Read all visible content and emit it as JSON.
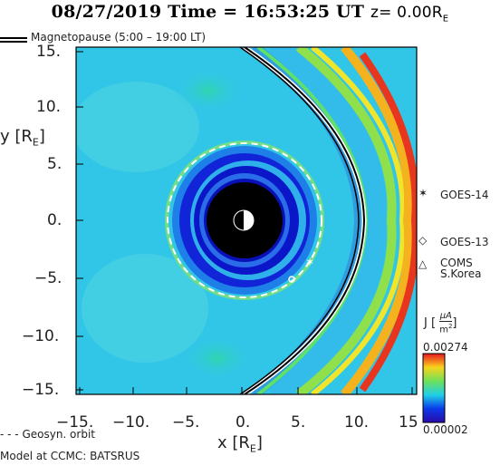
{
  "header": {
    "date": "08/27/2019",
    "time_label": "Time =",
    "time": "16:53:25 UT",
    "z_label": "z= 0.00R",
    "z_sub": "E"
  },
  "legend": {
    "magnetopause": "Magnetopause (5:00 – 19:00 LT)",
    "geosyn": "Geosyn. orbit"
  },
  "axes": {
    "y_label": "y [R",
    "y_sub": "E",
    "x_label": "x [R",
    "x_sub": "E",
    "y_ticks": [
      "15.",
      "10.",
      "5.",
      "0.",
      "−5.",
      "−10.",
      "−15."
    ],
    "x_ticks": [
      "−15.",
      "−10.",
      "−5.",
      "0.",
      "5.",
      "10.",
      "15"
    ]
  },
  "satellites": [
    {
      "name": "GOES-14",
      "marker": "star-icon"
    },
    {
      "name": "GOES-13",
      "marker": "diamond-icon"
    },
    {
      "name": "COMS",
      "name2": "S.Korea",
      "marker": "triangle-icon"
    }
  ],
  "colorbar": {
    "label": "J [",
    "unit_num": "μA",
    "unit_den": "m",
    "unit_pow": "2",
    "max": "0.00274",
    "min": "0.00002"
  },
  "footer": {
    "model": "Model at CCMC: BATSRUS"
  },
  "colors": {
    "background": "#31c6e8",
    "inner_blue": "#0a1edc",
    "earth": "#000000",
    "magnetopause": "#000000"
  }
}
